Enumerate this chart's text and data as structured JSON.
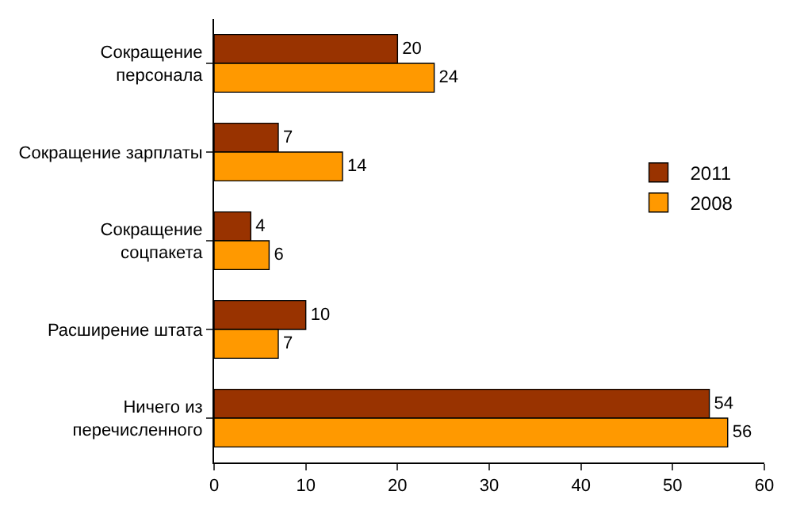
{
  "chart_data": {
    "type": "bar",
    "orientation": "horizontal",
    "categories": [
      "Сокращение\nперсонала",
      "Сокращение зарплаты",
      "Сокращение\nсоцпакета",
      "Расширение штата",
      "Ничего из\nперечисленного"
    ],
    "series": [
      {
        "name": "2011",
        "color": "#993300",
        "values": [
          20,
          7,
          4,
          10,
          54
        ]
      },
      {
        "name": "2008",
        "color": "#ff9900",
        "values": [
          24,
          14,
          6,
          7,
          56
        ]
      }
    ],
    "xlim": [
      0,
      60
    ],
    "xticks": [
      0,
      10,
      20,
      30,
      40,
      50,
      60
    ],
    "grid": false,
    "legend": "right",
    "data_labels": true
  }
}
